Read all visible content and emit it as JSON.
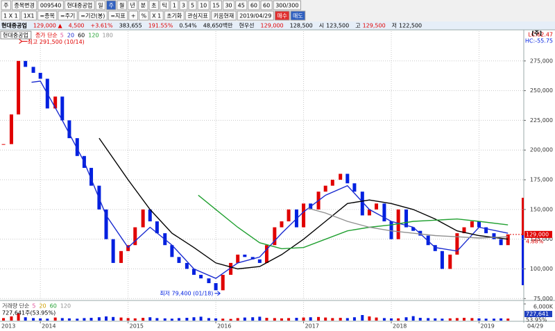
{
  "toolbar": {
    "row1": [
      "주",
      "종목변경",
      "009540",
      "현대중공업",
      "일",
      "주",
      "월",
      "년",
      "분",
      "초",
      "틱",
      "1",
      "3",
      "5",
      "10",
      "15",
      "30",
      "45",
      "60",
      "60",
      "300/300"
    ],
    "row2": [
      "1 X 1",
      "1X1",
      "=종목",
      "=주기",
      "=기간(봉)",
      "=지표",
      "+",
      "%",
      "X 1",
      "초기화",
      "관심지표",
      "키움현재",
      "2019/04/29",
      "매수",
      "매도"
    ]
  },
  "info_bar": [
    {
      "text": "현대중공업",
      "color": "#000"
    },
    {
      "text": "129,000 ▲",
      "color": "#e00000"
    },
    {
      "text": "4,500",
      "color": "#e00000"
    },
    {
      "text": "+3.61%",
      "color": "#e00000"
    },
    {
      "text": "383,655",
      "color": "#000"
    },
    {
      "text": "191.55%",
      "color": "#e00000"
    },
    {
      "text": "0.54%",
      "color": "#000"
    },
    {
      "text": "48,650백만",
      "color": "#000"
    },
    {
      "text": "현우선",
      "color": "#000"
    },
    {
      "text": "129,000",
      "color": "#e00000"
    },
    {
      "text": "128,500",
      "color": "#000"
    },
    {
      "text": "시",
      "color": "#000"
    },
    {
      "text": "123,500",
      "color": "#000"
    },
    {
      "text": "고",
      "color": "#000"
    },
    {
      "text": "129,500",
      "color": "#e00000"
    },
    {
      "text": "저",
      "color": "#000"
    },
    {
      "text": "122,500",
      "color": "#000"
    }
  ],
  "chart_data": {
    "type": "candlestick",
    "title": "현대중공업",
    "period_label": "[주]",
    "indicators": [
      "LC:62.47",
      "HC:-55.75"
    ],
    "legend_label": "종가 단순",
    "legend_items": [
      {
        "name": "5",
        "color": "#e0509a"
      },
      {
        "name": "20",
        "color": "#1a2bd0"
      },
      {
        "name": "60",
        "color": "#000000"
      },
      {
        "name": "120",
        "color": "#20a030"
      },
      {
        "name": "180",
        "color": "#909090"
      }
    ],
    "up_color": "#e00000",
    "down_color": "#0020e0",
    "x": [
      2013.58,
      2013.67,
      2013.75,
      2013.83,
      2013.92,
      2014.0,
      2014.08,
      2014.17,
      2014.25,
      2014.33,
      2014.42,
      2014.5,
      2014.58,
      2014.67,
      2014.75,
      2014.83,
      2014.92,
      2015.0,
      2015.08,
      2015.17,
      2015.25,
      2015.33,
      2015.42,
      2015.5,
      2015.58,
      2015.67,
      2015.75,
      2015.83,
      2015.92,
      2016.0,
      2016.08,
      2016.17,
      2016.25,
      2016.33,
      2016.42,
      2016.5,
      2016.58,
      2016.67,
      2016.75,
      2016.83,
      2016.92,
      2017.0,
      2017.08,
      2017.17,
      2017.25,
      2017.33,
      2017.42,
      2017.5,
      2017.58,
      2017.67,
      2017.75,
      2017.83,
      2017.92,
      2018.0,
      2018.08,
      2018.17,
      2018.25,
      2018.33,
      2018.42,
      2018.5,
      2018.58,
      2018.67,
      2018.75,
      2018.83,
      2018.92,
      2019.0,
      2019.08,
      2019.17,
      2019.25,
      2019.33
    ],
    "close": [
      205000,
      230000,
      275000,
      270000,
      265000,
      260000,
      235000,
      245000,
      225000,
      210000,
      195000,
      185000,
      170000,
      150000,
      125000,
      105000,
      115000,
      120000,
      135000,
      150000,
      140000,
      130000,
      120000,
      110000,
      105000,
      100000,
      95000,
      92000,
      88000,
      82000,
      95000,
      105000,
      112000,
      110000,
      108000,
      105000,
      120000,
      135000,
      140000,
      150000,
      135000,
      155000,
      150000,
      165000,
      170000,
      175000,
      180000,
      172000,
      165000,
      145000,
      150000,
      155000,
      140000,
      125000,
      150000,
      135000,
      132000,
      128000,
      120000,
      115000,
      100000,
      112000,
      130000,
      135000,
      140000,
      135000,
      130000,
      125000,
      120000,
      129000
    ],
    "moving_averages": [
      {
        "name": "20",
        "color": "#1a2bd0",
        "x": [
          2013.9,
          2014.0,
          2014.25,
          2014.5,
          2014.75,
          2015.0,
          2015.25,
          2015.5,
          2015.75,
          2016.0,
          2016.25,
          2016.5,
          2016.75,
          2017.0,
          2017.25,
          2017.5,
          2017.75,
          2018.0,
          2018.25,
          2018.5,
          2018.75,
          2019.0,
          2019.33
        ],
        "values": [
          257000,
          258000,
          225000,
          190000,
          145000,
          118000,
          135000,
          120000,
          100000,
          92000,
          105000,
          110000,
          130000,
          148000,
          162000,
          170000,
          150000,
          140000,
          135000,
          118000,
          115000,
          135000,
          130000
        ]
      },
      {
        "name": "60",
        "color": "#000000",
        "x": [
          2014.67,
          2015.0,
          2015.25,
          2015.5,
          2015.75,
          2016.0,
          2016.25,
          2016.5,
          2016.75,
          2017.0,
          2017.25,
          2017.5,
          2017.75,
          2018.0,
          2018.25,
          2018.5,
          2018.75,
          2019.0,
          2019.33
        ],
        "values": [
          210000,
          175000,
          150000,
          130000,
          118000,
          105000,
          100000,
          102000,
          112000,
          125000,
          140000,
          155000,
          158000,
          155000,
          150000,
          142000,
          132000,
          128000,
          125000
        ]
      },
      {
        "name": "120",
        "color": "#20a030",
        "x": [
          2015.8,
          2016.0,
          2016.25,
          2016.5,
          2016.75,
          2017.0,
          2017.25,
          2017.5,
          2017.75,
          2018.0,
          2018.25,
          2018.5,
          2018.75,
          2019.0,
          2019.33
        ],
        "values": [
          162000,
          150000,
          135000,
          122000,
          117000,
          118000,
          125000,
          132000,
          135000,
          137000,
          140000,
          141000,
          142000,
          140000,
          137000
        ]
      },
      {
        "name": "180",
        "color": "#909090",
        "x": [
          2017.05,
          2017.25,
          2017.5,
          2017.75,
          2018.0,
          2018.25,
          2018.5,
          2018.75,
          2019.0,
          2019.33
        ],
        "values": [
          151000,
          147000,
          140000,
          135000,
          132000,
          130000,
          128000,
          127000,
          126000,
          127000
        ]
      }
    ],
    "annotations": [
      {
        "text": "최고 291,500 (10/14)",
        "x": 2013.79,
        "y": 291500,
        "color": "#e00000"
      },
      {
        "text": "최저 79,400 (01/18)",
        "x": 2016.05,
        "y": 79400,
        "color": "#0020e0"
      }
    ],
    "last_price": {
      "value": 129000,
      "label": "129,000",
      "change": "4.88%"
    },
    "xlim": [
      2013.54,
      2019.51
    ],
    "xticks": [
      2013,
      2014,
      2015,
      2016,
      2017,
      2018,
      2019
    ],
    "ylim": [
      74000,
      300000
    ],
    "yticks": [
      {
        "value": 75000,
        "label": "75,000"
      },
      {
        "value": 100000,
        "label": "100,000"
      },
      {
        "value": 125000,
        "label": "125,000"
      },
      {
        "value": 150000,
        "label": "150,000"
      },
      {
        "value": 175000,
        "label": "175,000"
      },
      {
        "value": 200000,
        "label": "200,000"
      },
      {
        "value": 225000,
        "label": "225,000"
      },
      {
        "value": 250000,
        "label": "250,000"
      },
      {
        "value": 275000,
        "label": "275,000"
      }
    ],
    "grid": true,
    "last_date": "04/29",
    "volume": {
      "legend_label": "거래량 단순",
      "legend_items": [
        {
          "name": "5",
          "color": "#e0509a"
        },
        {
          "name": "20",
          "color": "#d0a000"
        },
        {
          "name": "60",
          "color": "#20a030"
        },
        {
          "name": "120",
          "color": "#909090"
        }
      ],
      "summary": "727,641주(53.95%)",
      "last_label": "727,641",
      "last_pct": "53.95%",
      "ylim": [
        0,
        6500000
      ],
      "yticks": [
        {
          "value": 6000000,
          "label": "6,000K"
        }
      ],
      "values": [
        900000,
        1500000,
        2600000,
        1200000,
        900000,
        800000,
        700000,
        1100000,
        900000,
        800000,
        700000,
        900000,
        1000000,
        1200000,
        1500000,
        1300000,
        1100000,
        900000,
        800000,
        1000000,
        1200000,
        900000,
        800000,
        700000,
        900000,
        1000000,
        1200000,
        1400000,
        900000,
        800000,
        700000,
        600000,
        900000,
        1100000,
        1200000,
        1400000,
        1000000,
        900000,
        800000,
        900000,
        1000000,
        1100000,
        1200000,
        1300000,
        1100000,
        900000,
        1000000,
        900000,
        1200000,
        2000000,
        1500000,
        1100000,
        900000,
        800000,
        800000,
        1200000,
        1600000,
        1000000,
        900000,
        800000,
        700000,
        800000,
        900000,
        1000000,
        900000,
        800000,
        700000,
        700000,
        800000,
        727641
      ]
    }
  }
}
